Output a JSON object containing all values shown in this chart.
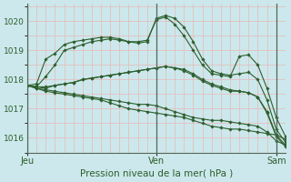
{
  "title": "Pression niveau de la mer( hPa )",
  "bg_color": "#cce8ec",
  "grid_major_color": "#e8b8b8",
  "grid_minor_color": "#e8b8b8",
  "line_color": "#2d5e2d",
  "ylim": [
    1015.5,
    1020.6
  ],
  "yticks": [
    1016,
    1017,
    1018,
    1019,
    1020
  ],
  "xtick_labels": [
    "Jeu",
    "Ven",
    "Sam"
  ],
  "xtick_positions": [
    0,
    14,
    27
  ],
  "num_points": 29,
  "series": [
    [
      1017.8,
      1017.85,
      1018.7,
      1018.9,
      1019.2,
      1019.3,
      1019.35,
      1019.4,
      1019.45,
      1019.45,
      1019.4,
      1019.3,
      1019.3,
      1019.35,
      1020.05,
      1020.15,
      1019.9,
      1019.5,
      1019.0,
      1018.5,
      1018.2,
      1018.15,
      1018.1,
      1018.8,
      1018.85,
      1018.5,
      1017.7,
      1016.7,
      1016.05
    ],
    [
      1017.8,
      1017.75,
      1018.1,
      1018.5,
      1019.0,
      1019.1,
      1019.2,
      1019.3,
      1019.35,
      1019.4,
      1019.35,
      1019.3,
      1019.25,
      1019.3,
      1020.1,
      1020.2,
      1020.1,
      1019.8,
      1019.3,
      1018.7,
      1018.3,
      1018.2,
      1018.15,
      1018.2,
      1018.25,
      1018.0,
      1017.3,
      1016.3,
      1015.85
    ],
    [
      1017.8,
      1017.75,
      1017.7,
      1017.8,
      1017.85,
      1017.9,
      1018.0,
      1018.05,
      1018.1,
      1018.15,
      1018.2,
      1018.25,
      1018.3,
      1018.35,
      1018.4,
      1018.45,
      1018.4,
      1018.35,
      1018.2,
      1018.0,
      1017.85,
      1017.75,
      1017.65,
      1017.6,
      1017.55,
      1017.4,
      1016.9,
      1016.1,
      1015.75
    ],
    [
      1017.8,
      1017.7,
      1017.65,
      1017.6,
      1017.55,
      1017.5,
      1017.45,
      1017.4,
      1017.35,
      1017.3,
      1017.25,
      1017.2,
      1017.15,
      1017.15,
      1017.1,
      1017.0,
      1016.9,
      1016.8,
      1016.7,
      1016.65,
      1016.6,
      1016.6,
      1016.55,
      1016.5,
      1016.45,
      1016.4,
      1016.2,
      1015.9,
      1015.75
    ],
    [
      1017.8,
      1017.7,
      1017.6,
      1017.55,
      1017.5,
      1017.45,
      1017.4,
      1017.35,
      1017.3,
      1017.2,
      1017.1,
      1017.0,
      1016.95,
      1016.9,
      1016.85,
      1016.8,
      1016.75,
      1016.7,
      1016.6,
      1016.5,
      1016.4,
      1016.35,
      1016.3,
      1016.3,
      1016.25,
      1016.2,
      1016.15,
      1016.1,
      1015.95
    ],
    [
      1017.8,
      1017.75,
      1017.75,
      1017.8,
      1017.85,
      1017.9,
      1018.0,
      1018.05,
      1018.1,
      1018.15,
      1018.2,
      1018.25,
      1018.3,
      1018.35,
      1018.4,
      1018.45,
      1018.4,
      1018.3,
      1018.15,
      1017.95,
      1017.8,
      1017.7,
      1017.6,
      1017.6,
      1017.55,
      1017.4,
      1016.85,
      1016.05,
      1015.7
    ]
  ]
}
